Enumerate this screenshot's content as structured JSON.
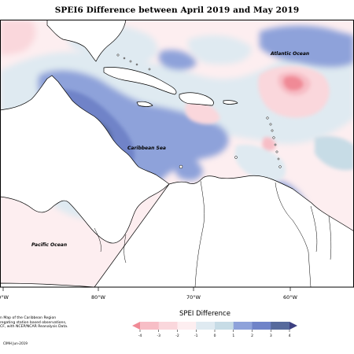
{
  "title": "SPEI6 Difference between April 2019 and May 2019",
  "map_labels": {
    "atlantic": "Atlantic Ocean",
    "caribbean": "Caribbean Sea",
    "pacific": "Pacific Ocean"
  },
  "longitude_labels": [
    "0°W",
    "80°W",
    "70°W",
    "60°W"
  ],
  "legend": {
    "title": "SPEI Difference",
    "ticks": [
      "-4",
      "-3",
      "-2",
      "-1",
      "0",
      "1",
      "2",
      "3",
      "4"
    ],
    "colors": [
      "#f08a96",
      "#f7bec6",
      "#fad7dc",
      "#fdeef0",
      "#dfeaf1",
      "#c7dce6",
      "#8ea2da",
      "#6f83c8",
      "#566a9c",
      "#3c3f80"
    ]
  },
  "credit_lines": [
    "n Map of the Caribbean Region",
    "regating station based observations,",
    "CF, with NCEP/NCAR Reanalysis Data."
  ],
  "stamp": "CIMH Jun-2019",
  "colors": {
    "land": "#ffffff",
    "coast": "#000000",
    "grid": "#000000"
  }
}
